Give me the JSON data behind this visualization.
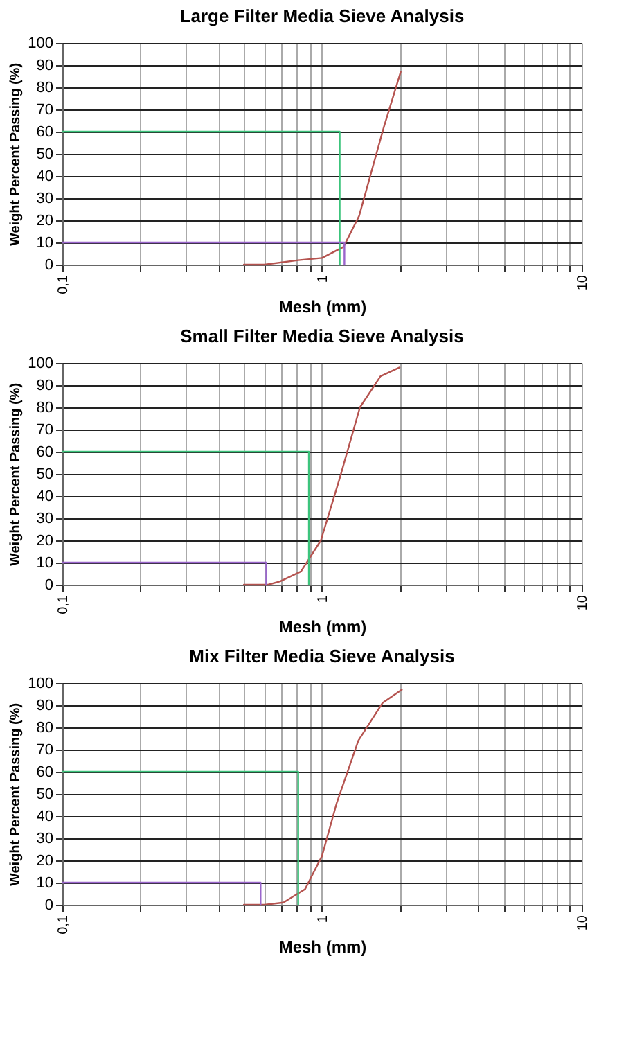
{
  "chart_data": [
    {
      "type": "line",
      "title": "Large Filter Media Sieve Analysis",
      "xlabel": "Mesh (mm)",
      "ylabel": "Weight Percent Passing     (%)",
      "log": "x",
      "grid": true,
      "legend": false,
      "marker": "none",
      "line_style": "solid",
      "xlim": [
        0.1,
        10
      ],
      "ylim": [
        0,
        100
      ],
      "yticks": [
        0,
        10,
        20,
        30,
        40,
        50,
        60,
        70,
        80,
        90,
        100
      ],
      "xticks": [
        {
          "value": 0.1,
          "label": "0,1"
        },
        {
          "value": 0.2,
          "label": null
        },
        {
          "value": 0.3,
          "label": null
        },
        {
          "value": 0.4,
          "label": null
        },
        {
          "value": 0.5,
          "label": null
        },
        {
          "value": 0.6,
          "label": null
        },
        {
          "value": 0.7,
          "label": null
        },
        {
          "value": 0.8,
          "label": null
        },
        {
          "value": 0.9,
          "label": null
        },
        1,
        {
          "value": 2,
          "label": null
        },
        {
          "value": 3,
          "label": null
        },
        {
          "value": 4,
          "label": null
        },
        {
          "value": 5,
          "label": null
        },
        {
          "value": 6,
          "label": null
        },
        {
          "value": 7,
          "label": null
        },
        {
          "value": 8,
          "label": null
        },
        {
          "value": 9,
          "label": null
        },
        10
      ],
      "series": [
        {
          "color": "#b5534f",
          "x": [
            0.5,
            0.6,
            0.81,
            1.0,
            1.21,
            1.39,
            1.73,
            2.01
          ],
          "values": [
            0,
            0,
            2,
            3,
            8,
            22,
            62,
            87
          ]
        },
        {
          "color": "#3cc47c",
          "x": [
            0.1,
            1.17,
            1.17
          ],
          "values": [
            60,
            60,
            0
          ]
        },
        {
          "color": "#9a66cc",
          "x": [
            0.1,
            1.22,
            1.22
          ],
          "values": [
            10,
            10,
            0
          ]
        }
      ]
    },
    {
      "type": "line",
      "title": "Small Filter Media Sieve Analysis",
      "xlabel": "Mesh (mm)",
      "ylabel": "Weight Percent Passing     (%)",
      "log": "x",
      "grid": true,
      "legend": false,
      "marker": "none",
      "line_style": "solid",
      "xlim": [
        0.1,
        10
      ],
      "ylim": [
        0,
        100
      ],
      "yticks": [
        0,
        10,
        20,
        30,
        40,
        50,
        60,
        70,
        80,
        90,
        100
      ],
      "xticks": [
        {
          "value": 0.1,
          "label": "0,1"
        },
        {
          "value": 0.2,
          "label": null
        },
        {
          "value": 0.3,
          "label": null
        },
        {
          "value": 0.4,
          "label": null
        },
        {
          "value": 0.5,
          "label": null
        },
        {
          "value": 0.6,
          "label": null
        },
        {
          "value": 0.7,
          "label": null
        },
        {
          "value": 0.8,
          "label": null
        },
        {
          "value": 0.9,
          "label": null
        },
        1,
        {
          "value": 2,
          "label": null
        },
        {
          "value": 3,
          "label": null
        },
        {
          "value": 4,
          "label": null
        },
        {
          "value": 5,
          "label": null
        },
        {
          "value": 6,
          "label": null
        },
        {
          "value": 7,
          "label": null
        },
        {
          "value": 8,
          "label": null
        },
        {
          "value": 9,
          "label": null
        },
        10
      ],
      "series": [
        {
          "color": "#b5534f",
          "x": [
            0.5,
            0.62,
            0.69,
            0.83,
            0.99,
            1.17,
            1.4,
            1.68,
            1.99
          ],
          "values": [
            0,
            0,
            1.5,
            6,
            20,
            48,
            80,
            94,
            98
          ]
        },
        {
          "color": "#3cc47c",
          "x": [
            0.1,
            0.89,
            0.89
          ],
          "values": [
            60,
            60,
            0
          ]
        },
        {
          "color": "#9a66cc",
          "x": [
            0.1,
            0.61,
            0.61
          ],
          "values": [
            10,
            10,
            0
          ]
        }
      ]
    },
    {
      "type": "line",
      "title": "Mix Filter Media Sieve Analysis",
      "xlabel": "Mesh (mm)",
      "ylabel": "Weight Percent Passing     (%)",
      "log": "x",
      "grid": true,
      "legend": false,
      "marker": "none",
      "line_style": "solid",
      "xlim": [
        0.1,
        10
      ],
      "ylim": [
        0,
        100
      ],
      "yticks": [
        0,
        10,
        20,
        30,
        40,
        50,
        60,
        70,
        80,
        90,
        100
      ],
      "xticks": [
        {
          "value": 0.1,
          "label": "0,1"
        },
        {
          "value": 0.2,
          "label": null
        },
        {
          "value": 0.3,
          "label": null
        },
        {
          "value": 0.4,
          "label": null
        },
        {
          "value": 0.5,
          "label": null
        },
        {
          "value": 0.6,
          "label": null
        },
        {
          "value": 0.7,
          "label": null
        },
        {
          "value": 0.8,
          "label": null
        },
        {
          "value": 0.9,
          "label": null
        },
        1,
        {
          "value": 2,
          "label": null
        },
        {
          "value": 3,
          "label": null
        },
        {
          "value": 4,
          "label": null
        },
        {
          "value": 5,
          "label": null
        },
        {
          "value": 6,
          "label": null
        },
        {
          "value": 7,
          "label": null
        },
        {
          "value": 8,
          "label": null
        },
        {
          "value": 9,
          "label": null
        },
        10
      ],
      "series": [
        {
          "color": "#b5534f",
          "x": [
            0.5,
            0.6,
            0.71,
            0.86,
            1.0,
            1.14,
            1.38,
            1.71,
            2.03
          ],
          "values": [
            0,
            0,
            1,
            7,
            22,
            46,
            74,
            91,
            97
          ]
        },
        {
          "color": "#3cc47c",
          "x": [
            0.1,
            0.81,
            0.81
          ],
          "values": [
            60,
            60,
            0
          ]
        },
        {
          "color": "#9a66cc",
          "x": [
            0.1,
            0.58,
            0.58
          ],
          "values": [
            10,
            10,
            0
          ]
        }
      ]
    }
  ]
}
